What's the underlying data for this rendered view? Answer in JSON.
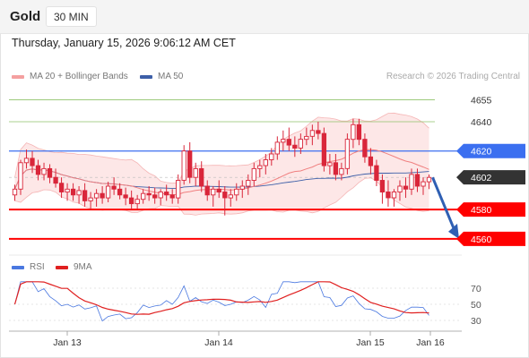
{
  "header": {
    "title": "Gold",
    "timeframe": "30 MIN",
    "datetime": "Thursday, January 15, 2026 9:06:12 AM CET"
  },
  "legend": {
    "ma_bb_label": "MA 20 + Bollinger Bands",
    "ma50_label": "MA 50",
    "credit": "Research © 2026 Trading Central"
  },
  "colors": {
    "up": "#d9263a",
    "down": "#d9263a",
    "ma20": "#f08080",
    "ma50": "#3d5fa8",
    "band_fill": "#fde3e3",
    "support": "#ff0000",
    "pivot": "#3b6ff0",
    "resistance": "#8fc26a",
    "last": "#333333",
    "rsi": "#4a78e0",
    "rsi_ma": "#e02020",
    "forecast_arrow": "#2f5fb3"
  },
  "levels": [
    {
      "value": 4655,
      "label": "4655",
      "kind": "resistance"
    },
    {
      "value": 4640,
      "label": "4640",
      "kind": "resistance"
    },
    {
      "value": 4620,
      "label": "4620",
      "kind": "pivot"
    },
    {
      "value": 4602,
      "label": "4602",
      "kind": "last"
    },
    {
      "value": 4580,
      "label": "4580",
      "kind": "support"
    },
    {
      "value": 4560,
      "label": "4560",
      "kind": "support"
    }
  ],
  "rsi_panel": {
    "rsi_label": "RSI",
    "ma_label": "9MA",
    "ticks": [
      "70",
      "50",
      "30"
    ]
  },
  "x_axis": {
    "labels": [
      "Jan 13",
      "Jan 14",
      "Jan 15",
      "Jan 16"
    ]
  },
  "chart_data": {
    "type": "candlestick",
    "title": "Gold",
    "timeframe": "30 MIN",
    "ylim": [
      4552,
      4662
    ],
    "forecast": {
      "from": 4602,
      "to": 4560
    },
    "candles": [
      [
        4590,
        4597,
        4586,
        4594
      ],
      [
        4594,
        4614,
        4590,
        4612
      ],
      [
        4612,
        4621,
        4608,
        4615
      ],
      [
        4615,
        4620,
        4605,
        4610
      ],
      [
        4610,
        4614,
        4600,
        4604
      ],
      [
        4604,
        4612,
        4600,
        4608
      ],
      [
        4608,
        4611,
        4598,
        4602
      ],
      [
        4602,
        4608,
        4595,
        4598
      ],
      [
        4598,
        4602,
        4588,
        4592
      ],
      [
        4592,
        4598,
        4586,
        4594
      ],
      [
        4594,
        4598,
        4586,
        4590
      ],
      [
        4590,
        4596,
        4584,
        4593
      ],
      [
        4593,
        4598,
        4582,
        4586
      ],
      [
        4586,
        4592,
        4580,
        4588
      ],
      [
        4588,
        4594,
        4582,
        4591
      ],
      [
        4591,
        4596,
        4584,
        4588
      ],
      [
        4588,
        4599,
        4585,
        4596
      ],
      [
        4596,
        4602,
        4590,
        4594
      ],
      [
        4594,
        4598,
        4587,
        4590
      ],
      [
        4590,
        4595,
        4583,
        4588
      ],
      [
        4588,
        4593,
        4580,
        4584
      ],
      [
        4584,
        4590,
        4580,
        4587
      ],
      [
        4587,
        4594,
        4584,
        4591
      ],
      [
        4591,
        4596,
        4586,
        4590
      ],
      [
        4590,
        4595,
        4584,
        4588
      ],
      [
        4588,
        4594,
        4583,
        4592
      ],
      [
        4592,
        4597,
        4586,
        4590
      ],
      [
        4590,
        4594,
        4584,
        4588
      ],
      [
        4588,
        4604,
        4584,
        4600
      ],
      [
        4600,
        4624,
        4597,
        4620
      ],
      [
        4620,
        4626,
        4598,
        4602
      ],
      [
        4602,
        4612,
        4596,
        4608
      ],
      [
        4608,
        4613,
        4592,
        4596
      ],
      [
        4596,
        4600,
        4586,
        4590
      ],
      [
        4590,
        4596,
        4582,
        4594
      ],
      [
        4594,
        4600,
        4588,
        4592
      ],
      [
        4592,
        4596,
        4576,
        4588
      ],
      [
        4588,
        4594,
        4582,
        4590
      ],
      [
        4590,
        4598,
        4586,
        4594
      ],
      [
        4594,
        4600,
        4588,
        4596
      ],
      [
        4596,
        4604,
        4590,
        4600
      ],
      [
        4600,
        4612,
        4596,
        4608
      ],
      [
        4608,
        4614,
        4602,
        4610
      ],
      [
        4610,
        4618,
        4604,
        4614
      ],
      [
        4614,
        4622,
        4610,
        4618
      ],
      [
        4618,
        4630,
        4614,
        4626
      ],
      [
        4626,
        4634,
        4620,
        4628
      ],
      [
        4628,
        4636,
        4620,
        4624
      ],
      [
        4624,
        4630,
        4616,
        4622
      ],
      [
        4622,
        4632,
        4618,
        4628
      ],
      [
        4628,
        4636,
        4624,
        4630
      ],
      [
        4630,
        4638,
        4624,
        4634
      ],
      [
        4634,
        4640,
        4628,
        4632
      ],
      [
        4632,
        4636,
        4606,
        4610
      ],
      [
        4610,
        4618,
        4604,
        4612
      ],
      [
        4612,
        4618,
        4600,
        4604
      ],
      [
        4604,
        4612,
        4600,
        4608
      ],
      [
        4608,
        4632,
        4604,
        4628
      ],
      [
        4628,
        4642,
        4622,
        4638
      ],
      [
        4638,
        4642,
        4624,
        4628
      ],
      [
        4628,
        4632,
        4612,
        4616
      ],
      [
        4616,
        4622,
        4604,
        4610
      ],
      [
        4610,
        4614,
        4596,
        4600
      ],
      [
        4600,
        4604,
        4584,
        4592
      ],
      [
        4592,
        4600,
        4582,
        4588
      ],
      [
        4588,
        4594,
        4582,
        4592
      ],
      [
        4592,
        4600,
        4586,
        4596
      ],
      [
        4596,
        4602,
        4588,
        4594
      ],
      [
        4594,
        4608,
        4590,
        4604
      ],
      [
        4604,
        4608,
        4592,
        4596
      ],
      [
        4596,
        4602,
        4590,
        4599
      ],
      [
        4599,
        4604,
        4594,
        4602
      ]
    ]
  }
}
